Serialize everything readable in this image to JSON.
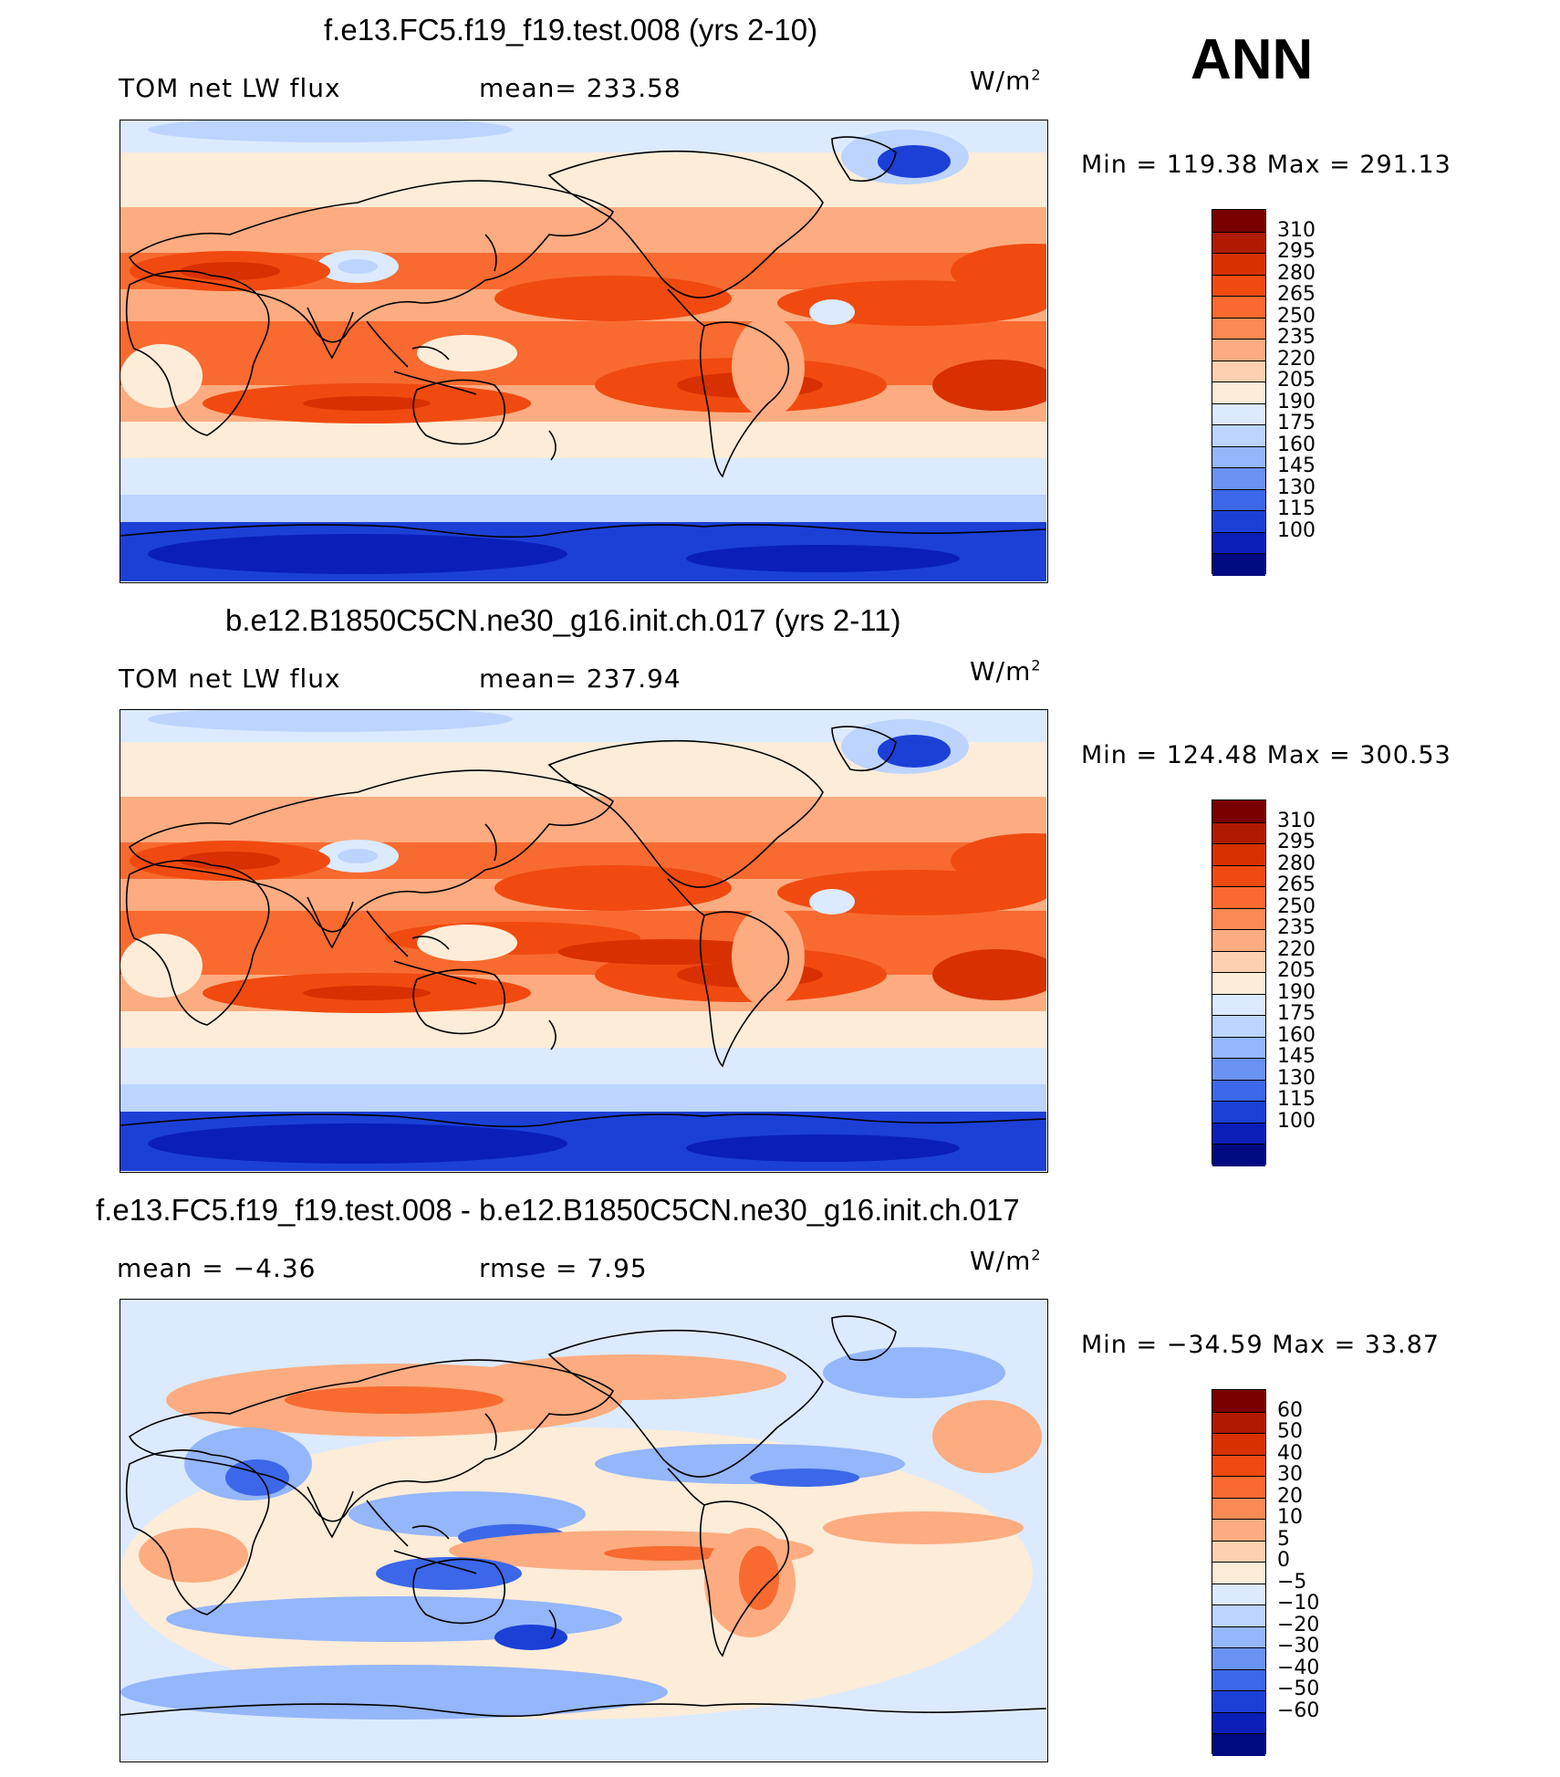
{
  "header": {
    "season": "ANN"
  },
  "units": {
    "base": "W/m",
    "sup": "2"
  },
  "panels": [
    {
      "title": "f.e13.FC5.f19_f19.test.008 (yrs 2-10)",
      "left_label": "TOM net LW flux",
      "mid_label": "mean= 233.58",
      "minmax": "Min = 119.38 Max = 291.13",
      "kind": "absolute"
    },
    {
      "title": "b.e12.B1850C5CN.ne30_g16.init.ch.017 (yrs 2-11)",
      "left_label": "TOM net LW flux",
      "mid_label": "mean= 237.94",
      "minmax": "Min = 124.48 Max = 300.53",
      "kind": "absolute"
    },
    {
      "title": "f.e13.FC5.f19_f19.test.008 - b.e12.B1850C5CN.ne30_g16.init.ch.017",
      "left_label": "mean =   −4.36",
      "mid_label": "rmse =    7.95",
      "minmax": "Min = −34.59 Max =  33.87",
      "kind": "difference"
    }
  ],
  "colorbars": {
    "absolute": {
      "labels": [
        "310",
        "295",
        "280",
        "265",
        "250",
        "235",
        "220",
        "205",
        "190",
        "175",
        "160",
        "145",
        "130",
        "115",
        "100"
      ],
      "colors": [
        "#7a0000",
        "#b01a00",
        "#d83000",
        "#f04a10",
        "#f86a30",
        "#fa8a55",
        "#fcac80",
        "#fdd0b0",
        "#fdecd8",
        "#dceaff",
        "#bcd4ff",
        "#94b6fb",
        "#6a92f2",
        "#3c67e8",
        "#1c40d6",
        "#0a1fb8",
        "#000a80"
      ]
    },
    "difference": {
      "labels": [
        "60",
        "50",
        "40",
        "30",
        "20",
        "10",
        "5",
        "0",
        "−5",
        "−10",
        "−20",
        "−30",
        "−40",
        "−50",
        "−60"
      ],
      "colors": [
        "#7a0000",
        "#b01a00",
        "#d83000",
        "#f04a10",
        "#f86a30",
        "#fa8a55",
        "#fcac80",
        "#fdd0b0",
        "#fdecd8",
        "#dceaff",
        "#bcd4ff",
        "#94b6fb",
        "#6a92f2",
        "#3c67e8",
        "#1c40d6",
        "#0a1fb8",
        "#000a80"
      ]
    },
    "field_colors": {
      "polar": "#1c40d6",
      "polar_dark": "#0a1fb8",
      "cold": "#bcd4ff",
      "cool": "#dceaff",
      "mid": "#fdecd8",
      "warm": "#fcac80",
      "hot": "#f86a30",
      "hotter": "#f04a10",
      "hottest": "#d83000",
      "diff_bg": "#dceaff",
      "diff_pos": "#fcac80",
      "diff_pos2": "#f86a30",
      "diff_neg": "#94b6fb",
      "diff_neg2": "#3c67e8",
      "diff_neg3": "#1c40d6"
    }
  }
}
